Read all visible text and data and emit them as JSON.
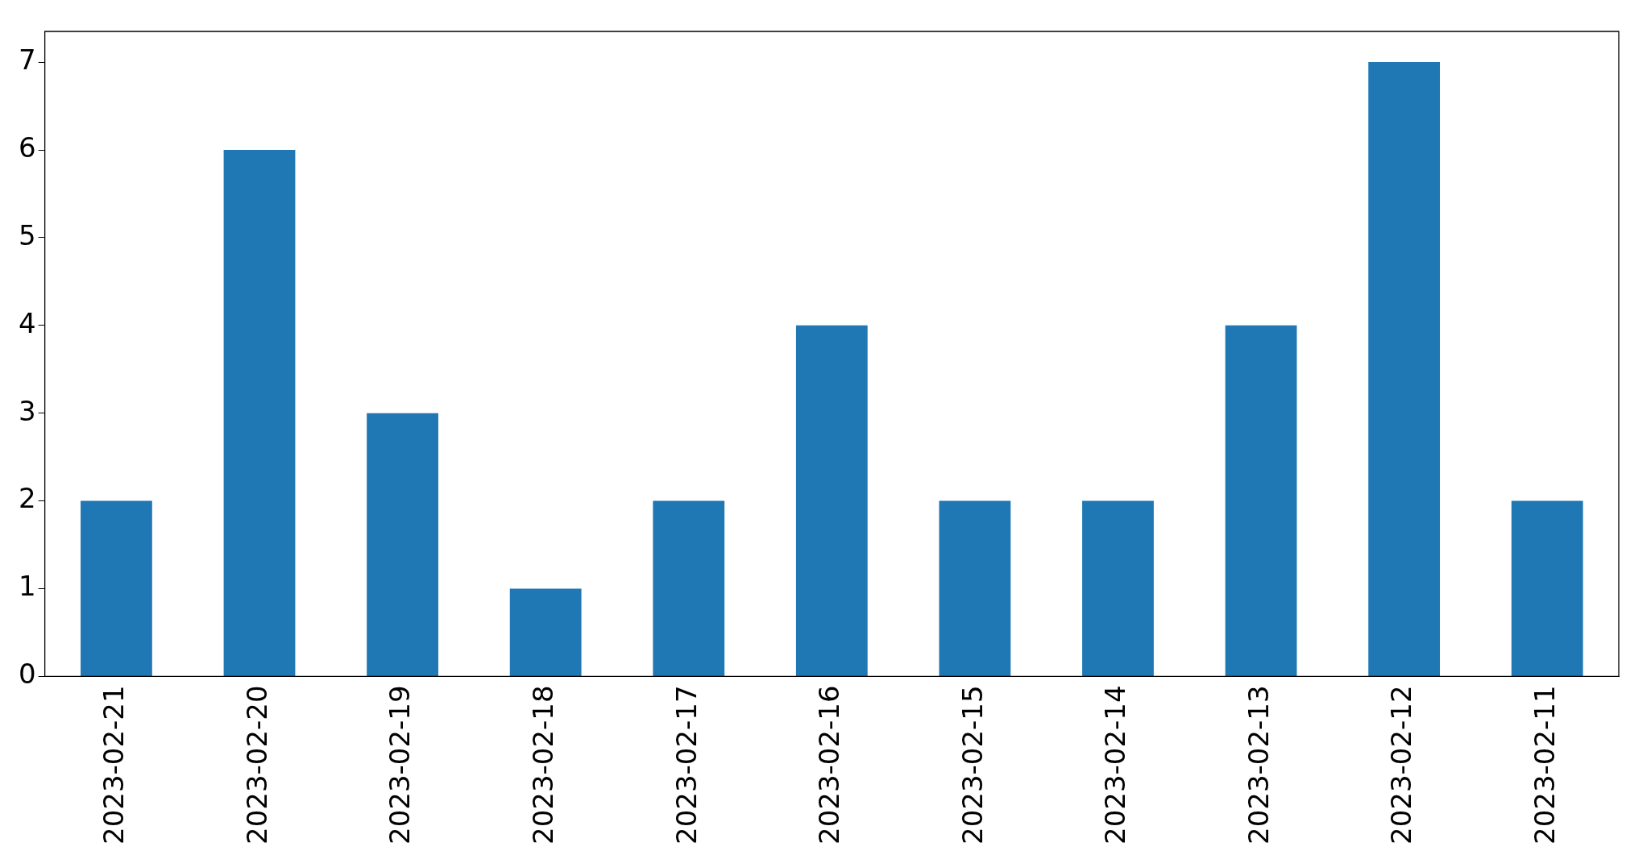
{
  "chart_data": {
    "type": "bar",
    "categories": [
      "2023-02-21",
      "2023-02-20",
      "2023-02-19",
      "2023-02-18",
      "2023-02-17",
      "2023-02-16",
      "2023-02-15",
      "2023-02-14",
      "2023-02-13",
      "2023-02-12",
      "2023-02-11"
    ],
    "values": [
      2,
      6,
      3,
      1,
      2,
      4,
      2,
      2,
      4,
      7,
      2
    ],
    "color": "#1f77b4",
    "ylim": [
      0,
      7.35
    ],
    "yticks": [
      0,
      1,
      2,
      3,
      4,
      5,
      6,
      7
    ],
    "grid": false
  }
}
